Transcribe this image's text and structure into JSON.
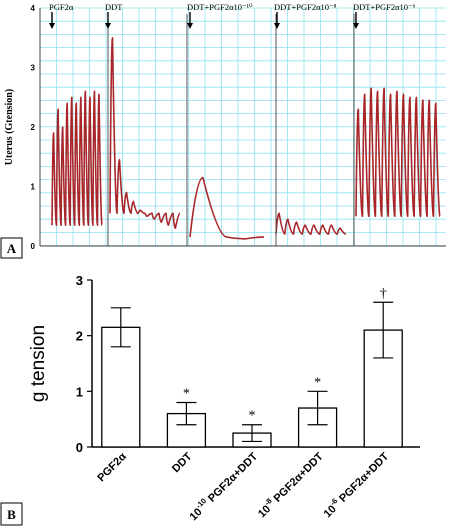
{
  "chart_data": [
    {
      "type": "line",
      "panel_label": "A",
      "ylabel": "Uterus (Gtension)",
      "ylim": [
        0,
        4
      ],
      "y_ticks": [
        "0",
        "1",
        "2",
        "3",
        "4"
      ],
      "grid": true,
      "segments": [
        {
          "label": "PGF2α",
          "baseline": 0.35,
          "peaks": [
            1.9,
            2.3,
            2.0,
            2.4,
            2.5,
            2.4,
            2.5,
            2.6,
            2.5,
            2.6,
            2.55
          ]
        },
        {
          "label": "DDT",
          "baseline": 0.55,
          "peaks": [
            3.5,
            1.45,
            0.9,
            0.75,
            0.6,
            0.5,
            0.45,
            0.4,
            0.35,
            0.3
          ]
        },
        {
          "label": "DDT+PGF2α10⁻¹⁰",
          "baseline": 0.15,
          "peaks": [
            1.15,
            0.12
          ]
        },
        {
          "label": "DDT+PGF2α10⁻⁸",
          "baseline": 0.2,
          "peaks": [
            0.55,
            0.45,
            0.4,
            0.35,
            0.35,
            0.35,
            0.35,
            0.3
          ]
        },
        {
          "label": "DDT+PGF2α10⁻⁶",
          "baseline": 0.5,
          "peaks": [
            2.3,
            2.55,
            2.65,
            2.6,
            2.65,
            2.55,
            2.6,
            2.55,
            2.5,
            2.5,
            2.45,
            2.45,
            2.4
          ]
        }
      ]
    },
    {
      "type": "bar",
      "panel_label": "B",
      "ylabel": "g  tension",
      "ylim": [
        0,
        3
      ],
      "y_ticks": [
        "0",
        "1",
        "2",
        "3"
      ],
      "categories": [
        {
          "pre": "",
          "sup": "",
          "post": "PGF2α"
        },
        {
          "pre": "",
          "sup": "",
          "post": "DDT"
        },
        {
          "pre": "10",
          "sup": "-10",
          "post": " PGF2α+DDT"
        },
        {
          "pre": "10",
          "sup": "-8",
          "post": " PGF2α+DDT"
        },
        {
          "pre": "10",
          "sup": "-6",
          "post": " PGF2α+DDT"
        }
      ],
      "values": [
        2.15,
        0.6,
        0.25,
        0.7,
        2.1
      ],
      "error": [
        0.35,
        0.2,
        0.15,
        0.3,
        0.5
      ],
      "significance": [
        "",
        "*",
        "*",
        "*",
        "†"
      ]
    }
  ]
}
